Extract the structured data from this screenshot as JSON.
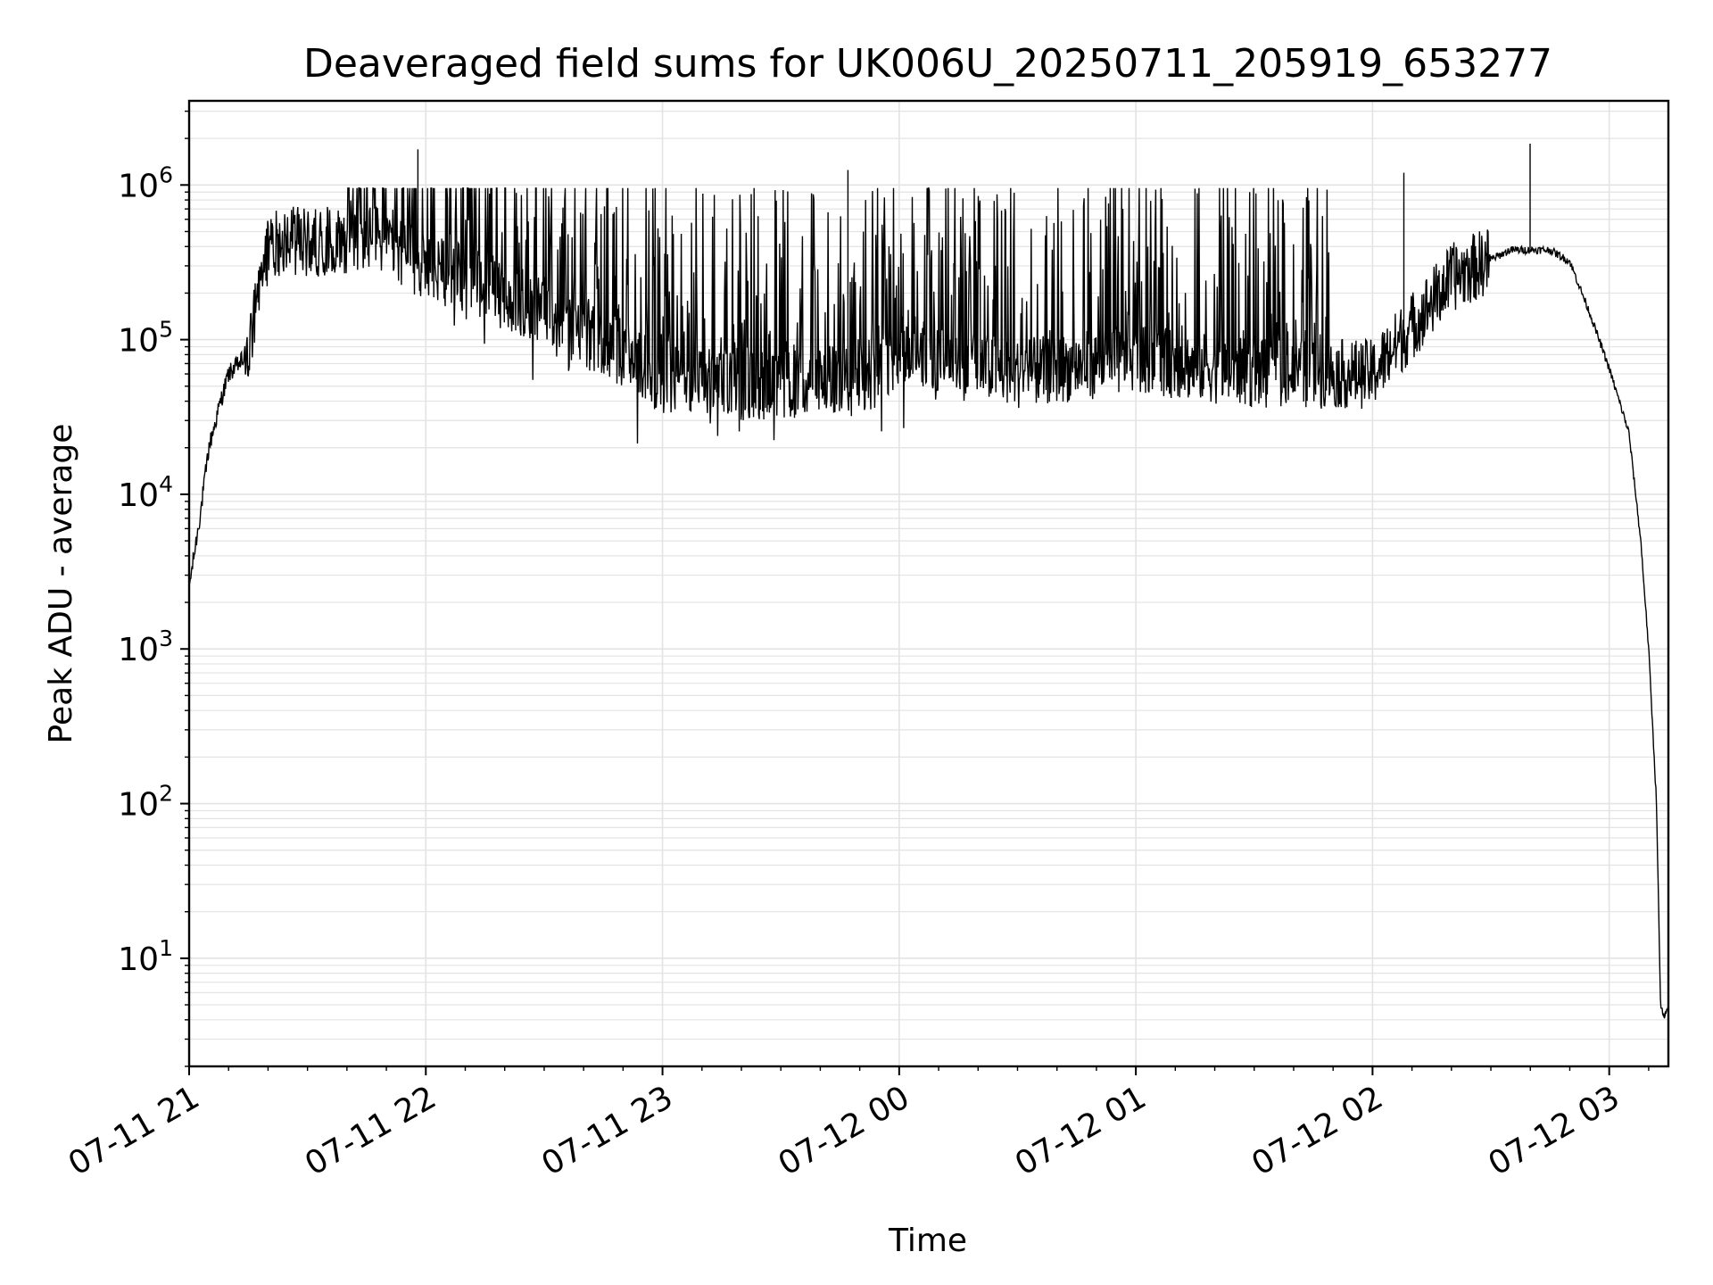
{
  "chart_data": {
    "type": "line",
    "title": "Deaveraged field sums for UK006U_20250711_205919_653277",
    "xlabel": "Time",
    "ylabel": "Peak ADU - average",
    "yscale": "log",
    "xlim": [
      "2025-07-11 21:00",
      "2025-07-12 03:15"
    ],
    "ylim": [
      2,
      3500000
    ],
    "x_tick_labels": [
      "07-11 21",
      "07-11 22",
      "07-11 23",
      "07-12 00",
      "07-12 01",
      "07-12 02",
      "07-12 03"
    ],
    "y_tick_labels": [
      {
        "base": "10",
        "exp": "1"
      },
      {
        "base": "10",
        "exp": "2"
      },
      {
        "base": "10",
        "exp": "3"
      },
      {
        "base": "10",
        "exp": "4"
      },
      {
        "base": "10",
        "exp": "5"
      },
      {
        "base": "10",
        "exp": "6"
      }
    ],
    "grid": true,
    "line_color": "#000000",
    "grid_color": "#e3e3e3",
    "series": [
      {
        "x": [
          "2025-07-11 21:00",
          "2025-07-11 21:03",
          "2025-07-11 21:05",
          "2025-07-11 21:08",
          "2025-07-11 21:10",
          "2025-07-11 21:15",
          "2025-07-11 21:20",
          "2025-07-11 21:25",
          "2025-07-11 21:30",
          "2025-07-11 21:40",
          "2025-07-11 21:50",
          "2025-07-11 21:58",
          "2025-07-11 22:10",
          "2025-07-11 22:30",
          "2025-07-11 22:50",
          "2025-07-11 23:00",
          "2025-07-11 23:30",
          "2025-07-11 23:55",
          "2025-07-12 00:00",
          "2025-07-12 00:30",
          "2025-07-12 01:00",
          "2025-07-12 01:30",
          "2025-07-12 02:00",
          "2025-07-12 02:20",
          "2025-07-12 02:35",
          "2025-07-12 02:45",
          "2025-07-12 02:50",
          "2025-07-12 02:55",
          "2025-07-12 03:00",
          "2025-07-12 03:05",
          "2025-07-12 03:08",
          "2025-07-12 03:10",
          "2025-07-12 03:12",
          "2025-07-12 03:13",
          "2025-07-12 03:14",
          "2025-07-12 03:15"
        ],
        "y": [
          2500,
          8000,
          20000,
          40000,
          60000,
          80000,
          400000,
          450000,
          420000,
          450000,
          450000,
          300000,
          250000,
          150000,
          80000,
          55000,
          50000,
          60000,
          85000,
          60000,
          75000,
          60000,
          60000,
          250000,
          380000,
          380000,
          320000,
          150000,
          65000,
          25000,
          5000,
          1000,
          100,
          5,
          4,
          5
        ]
      }
    ],
    "spikes_max": [
      1700000,
      1250000,
      1850000,
      1200000
    ]
  }
}
